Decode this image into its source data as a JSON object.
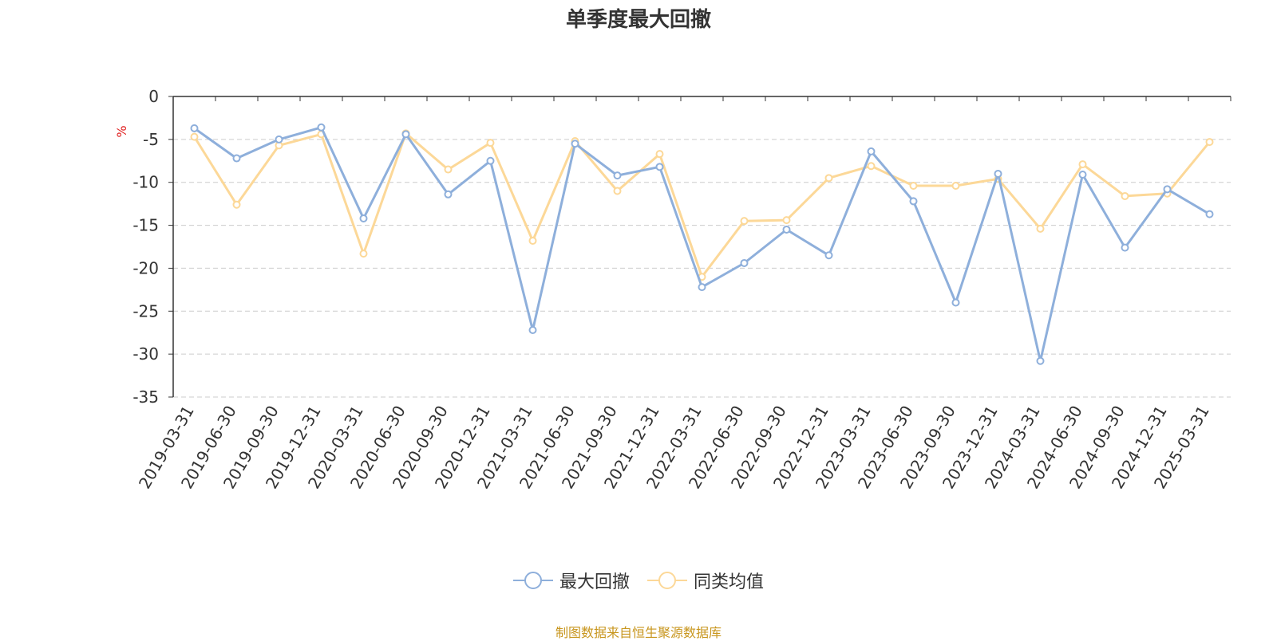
{
  "chart_data": {
    "type": "line",
    "title": "单季度最大回撤",
    "ylabel": "%",
    "xlabel": "",
    "ylim": [
      -35,
      0
    ],
    "yticks": [
      0,
      -5,
      -10,
      -15,
      -20,
      -25,
      -30,
      -35
    ],
    "categories": [
      "2019-03-31",
      "2019-06-30",
      "2019-09-30",
      "2019-12-31",
      "2020-03-31",
      "2020-06-30",
      "2020-09-30",
      "2020-12-31",
      "2021-03-31",
      "2021-06-30",
      "2021-09-30",
      "2021-12-31",
      "2022-03-31",
      "2022-06-30",
      "2022-09-30",
      "2022-12-31",
      "2023-03-31",
      "2023-06-30",
      "2023-09-30",
      "2023-12-31",
      "2024-03-31",
      "2024-06-30",
      "2024-09-30",
      "2024-12-31",
      "2025-03-31"
    ],
    "series": [
      {
        "name": "最大回撤",
        "color": "#8eafdb",
        "values": [
          -3.7,
          -7.2,
          -5.0,
          -3.6,
          -14.2,
          -4.4,
          -11.4,
          -7.5,
          -27.2,
          -5.5,
          -9.2,
          -8.2,
          -22.2,
          -19.4,
          -15.5,
          -18.5,
          -6.4,
          -12.2,
          -24.0,
          -9.0,
          -30.8,
          -9.1,
          -17.6,
          -10.8,
          -13.7
        ]
      },
      {
        "name": "同类均值",
        "color": "#fcd898",
        "values": [
          -4.7,
          -12.6,
          -5.7,
          -4.4,
          -18.3,
          -4.3,
          -8.5,
          -5.4,
          -16.8,
          -5.2,
          -11.0,
          -6.7,
          -21.0,
          -14.5,
          -14.4,
          -9.5,
          -8.1,
          -10.4,
          -10.4,
          -9.6,
          -15.4,
          -7.9,
          -11.6,
          -11.3,
          -5.3
        ]
      }
    ],
    "grid": true,
    "legend_position": "bottom-center"
  },
  "source_note": "制图数据来自恒生聚源数据库"
}
